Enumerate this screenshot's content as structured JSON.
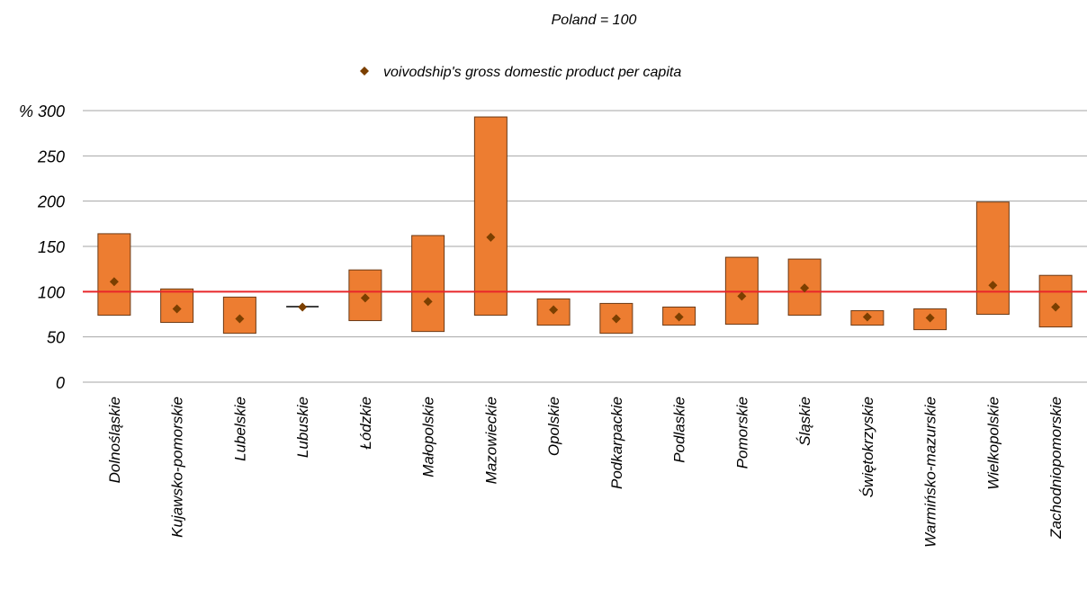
{
  "chart_data": {
    "type": "bar",
    "subtitle": "Poland = 100",
    "y_unit_label": "%",
    "ylim": [
      0,
      300
    ],
    "yticks": [
      0,
      50,
      100,
      150,
      200,
      250,
      300
    ],
    "reference_line": {
      "value": 100,
      "color": "#e8262a"
    },
    "legend": {
      "label": "voivodship's gross domestic product per capita",
      "marker": "diamond",
      "position": "top-center"
    },
    "grid": true,
    "colors": {
      "range_bar": "#ed7d31",
      "range_bar_edge": "#6b3a16",
      "marker": "#7b3f00"
    },
    "categories": [
      "Dolnośląskie",
      "Kujawsko-pomorskie",
      "Lubelskie",
      "Lubuskie",
      "Łódzkie",
      "Małopolskie",
      "Mazowieckie",
      "Opolskie",
      "Podkarpackie",
      "Podlaskie",
      "Pomorskie",
      "Śląskie",
      "Świętokrzyskie",
      "Warmińsko-mazurskie",
      "Wielkopolskie",
      "Zachodniopomorskie"
    ],
    "series": [
      {
        "name": "range_min",
        "values": [
          74,
          66,
          54,
          83,
          68,
          56,
          74,
          63,
          54,
          63,
          64,
          74,
          63,
          58,
          75,
          61
        ]
      },
      {
        "name": "range_max",
        "values": [
          164,
          103,
          94,
          84,
          124,
          162,
          293,
          92,
          87,
          83,
          138,
          136,
          79,
          81,
          199,
          118
        ]
      },
      {
        "name": "voivodship's gross domestic product per capita",
        "values": [
          111,
          81,
          70,
          83,
          93,
          89,
          160,
          80,
          70,
          72,
          95,
          104,
          72,
          71,
          107,
          83
        ]
      }
    ]
  }
}
